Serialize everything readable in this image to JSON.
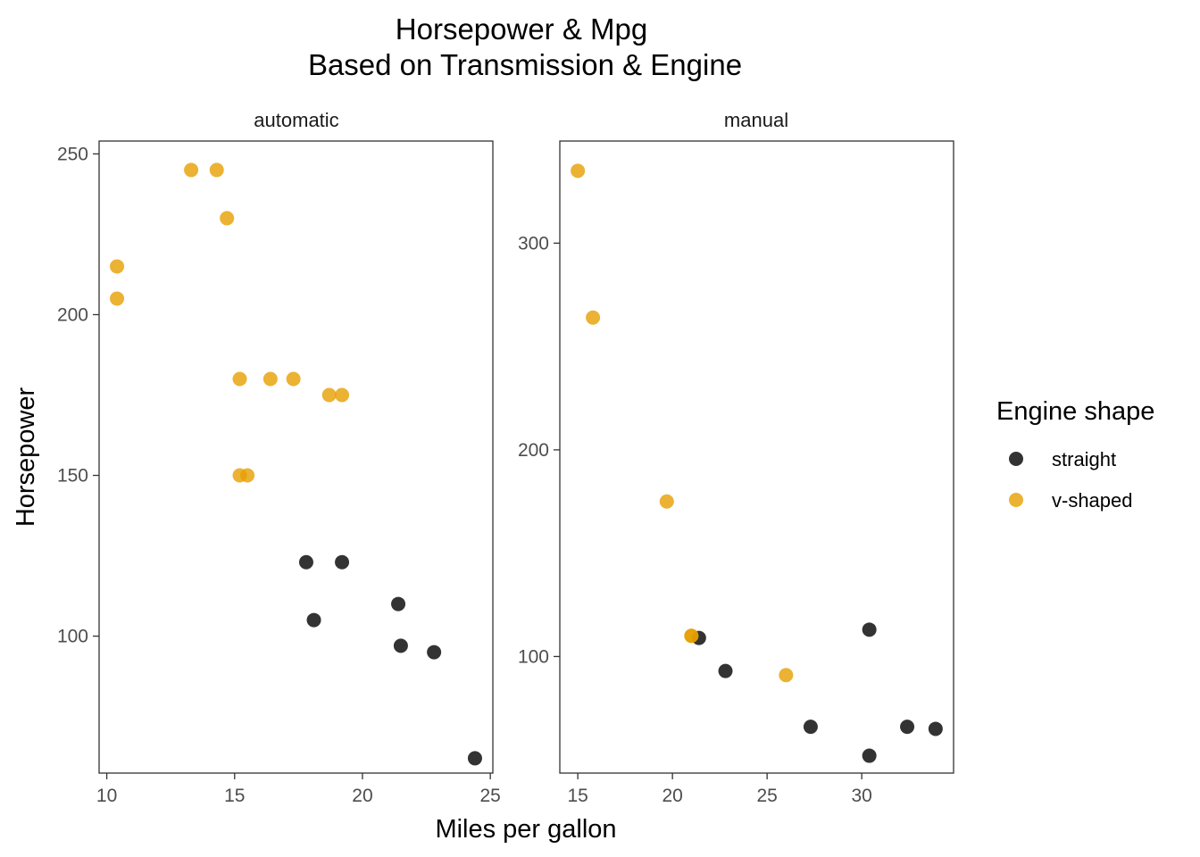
{
  "chart_data": {
    "type": "scatter",
    "title": [
      "Horsepower & Mpg",
      "Based on Transmission & Engine"
    ],
    "xlabel": "Miles per gallon",
    "ylabel": "Horsepower",
    "legend": {
      "title": "Engine shape",
      "position": "right",
      "entries": [
        {
          "label": "straight",
          "color": "#000000"
        },
        {
          "label": "v-shaped",
          "color": "#E69F00"
        }
      ]
    },
    "point_alpha": 0.8,
    "facets": [
      {
        "label": "automatic",
        "xlim": [
          9.7,
          25.1
        ],
        "ylim": [
          57.4,
          254
        ],
        "x_ticks": [
          10,
          15,
          20,
          25
        ],
        "y_ticks": [
          100,
          150,
          200,
          250
        ],
        "series": [
          {
            "name": "straight",
            "points": [
              [
                21.4,
                110
              ],
              [
                18.1,
                105
              ],
              [
                24.4,
                62
              ],
              [
                22.8,
                95
              ],
              [
                19.2,
                123
              ],
              [
                17.8,
                123
              ],
              [
                21.5,
                97
              ]
            ]
          },
          {
            "name": "v-shaped",
            "points": [
              [
                18.7,
                175
              ],
              [
                14.3,
                245
              ],
              [
                16.4,
                180
              ],
              [
                17.3,
                180
              ],
              [
                15.2,
                180
              ],
              [
                10.4,
                205
              ],
              [
                10.4,
                215
              ],
              [
                14.7,
                230
              ],
              [
                15.5,
                150
              ],
              [
                15.2,
                150
              ],
              [
                13.3,
                245
              ],
              [
                19.2,
                175
              ]
            ]
          }
        ]
      },
      {
        "label": "manual",
        "xlim": [
          14.05,
          34.85
        ],
        "ylim": [
          43.6,
          349.4
        ],
        "x_ticks": [
          15,
          20,
          25,
          30
        ],
        "y_ticks": [
          100,
          200,
          300
        ],
        "series": [
          {
            "name": "straight",
            "points": [
              [
                22.8,
                93
              ],
              [
                32.4,
                66
              ],
              [
                30.4,
                52
              ],
              [
                33.9,
                65
              ],
              [
                27.3,
                66
              ],
              [
                30.4,
                113
              ],
              [
                21.4,
                109
              ]
            ]
          },
          {
            "name": "v-shaped",
            "points": [
              [
                21.0,
                110
              ],
              [
                21.0,
                110
              ],
              [
                26.0,
                91
              ],
              [
                15.8,
                264
              ],
              [
                19.7,
                175
              ],
              [
                15.0,
                335
              ]
            ]
          }
        ]
      }
    ]
  }
}
